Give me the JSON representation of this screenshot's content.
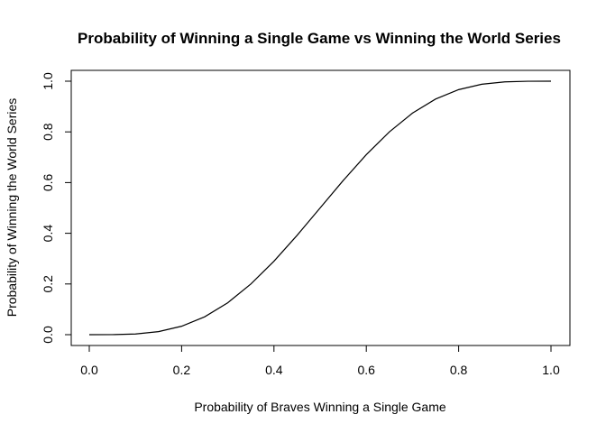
{
  "chart_data": {
    "type": "line",
    "title": "Probability of Winning a Single Game vs Winning the World Series",
    "xlabel": "Probability of Braves Winning a Single Game",
    "ylabel": "Probability of Winning the World Series",
    "xlim": [
      0,
      1
    ],
    "ylim": [
      0,
      1
    ],
    "x_ticks": [
      "0.0",
      "0.2",
      "0.4",
      "0.6",
      "0.8",
      "1.0"
    ],
    "y_ticks": [
      "0.0",
      "0.2",
      "0.4",
      "0.6",
      "0.8",
      "1.0"
    ],
    "grid": false,
    "legend": "none",
    "line_color": "#000000",
    "series": [
      {
        "x": [
          0.0,
          0.05,
          0.1,
          0.15,
          0.2,
          0.25,
          0.3,
          0.35,
          0.4,
          0.45,
          0.5,
          0.55,
          0.6,
          0.65,
          0.7,
          0.75,
          0.8,
          0.85,
          0.9,
          0.95,
          1.0
        ],
        "values": [
          0.0,
          0.0002,
          0.0027,
          0.0121,
          0.0333,
          0.0706,
          0.126,
          0.1998,
          0.2898,
          0.3917,
          0.5,
          0.6083,
          0.7102,
          0.8002,
          0.874,
          0.9294,
          0.9667,
          0.9879,
          0.9973,
          0.9998,
          1.0
        ]
      }
    ]
  }
}
